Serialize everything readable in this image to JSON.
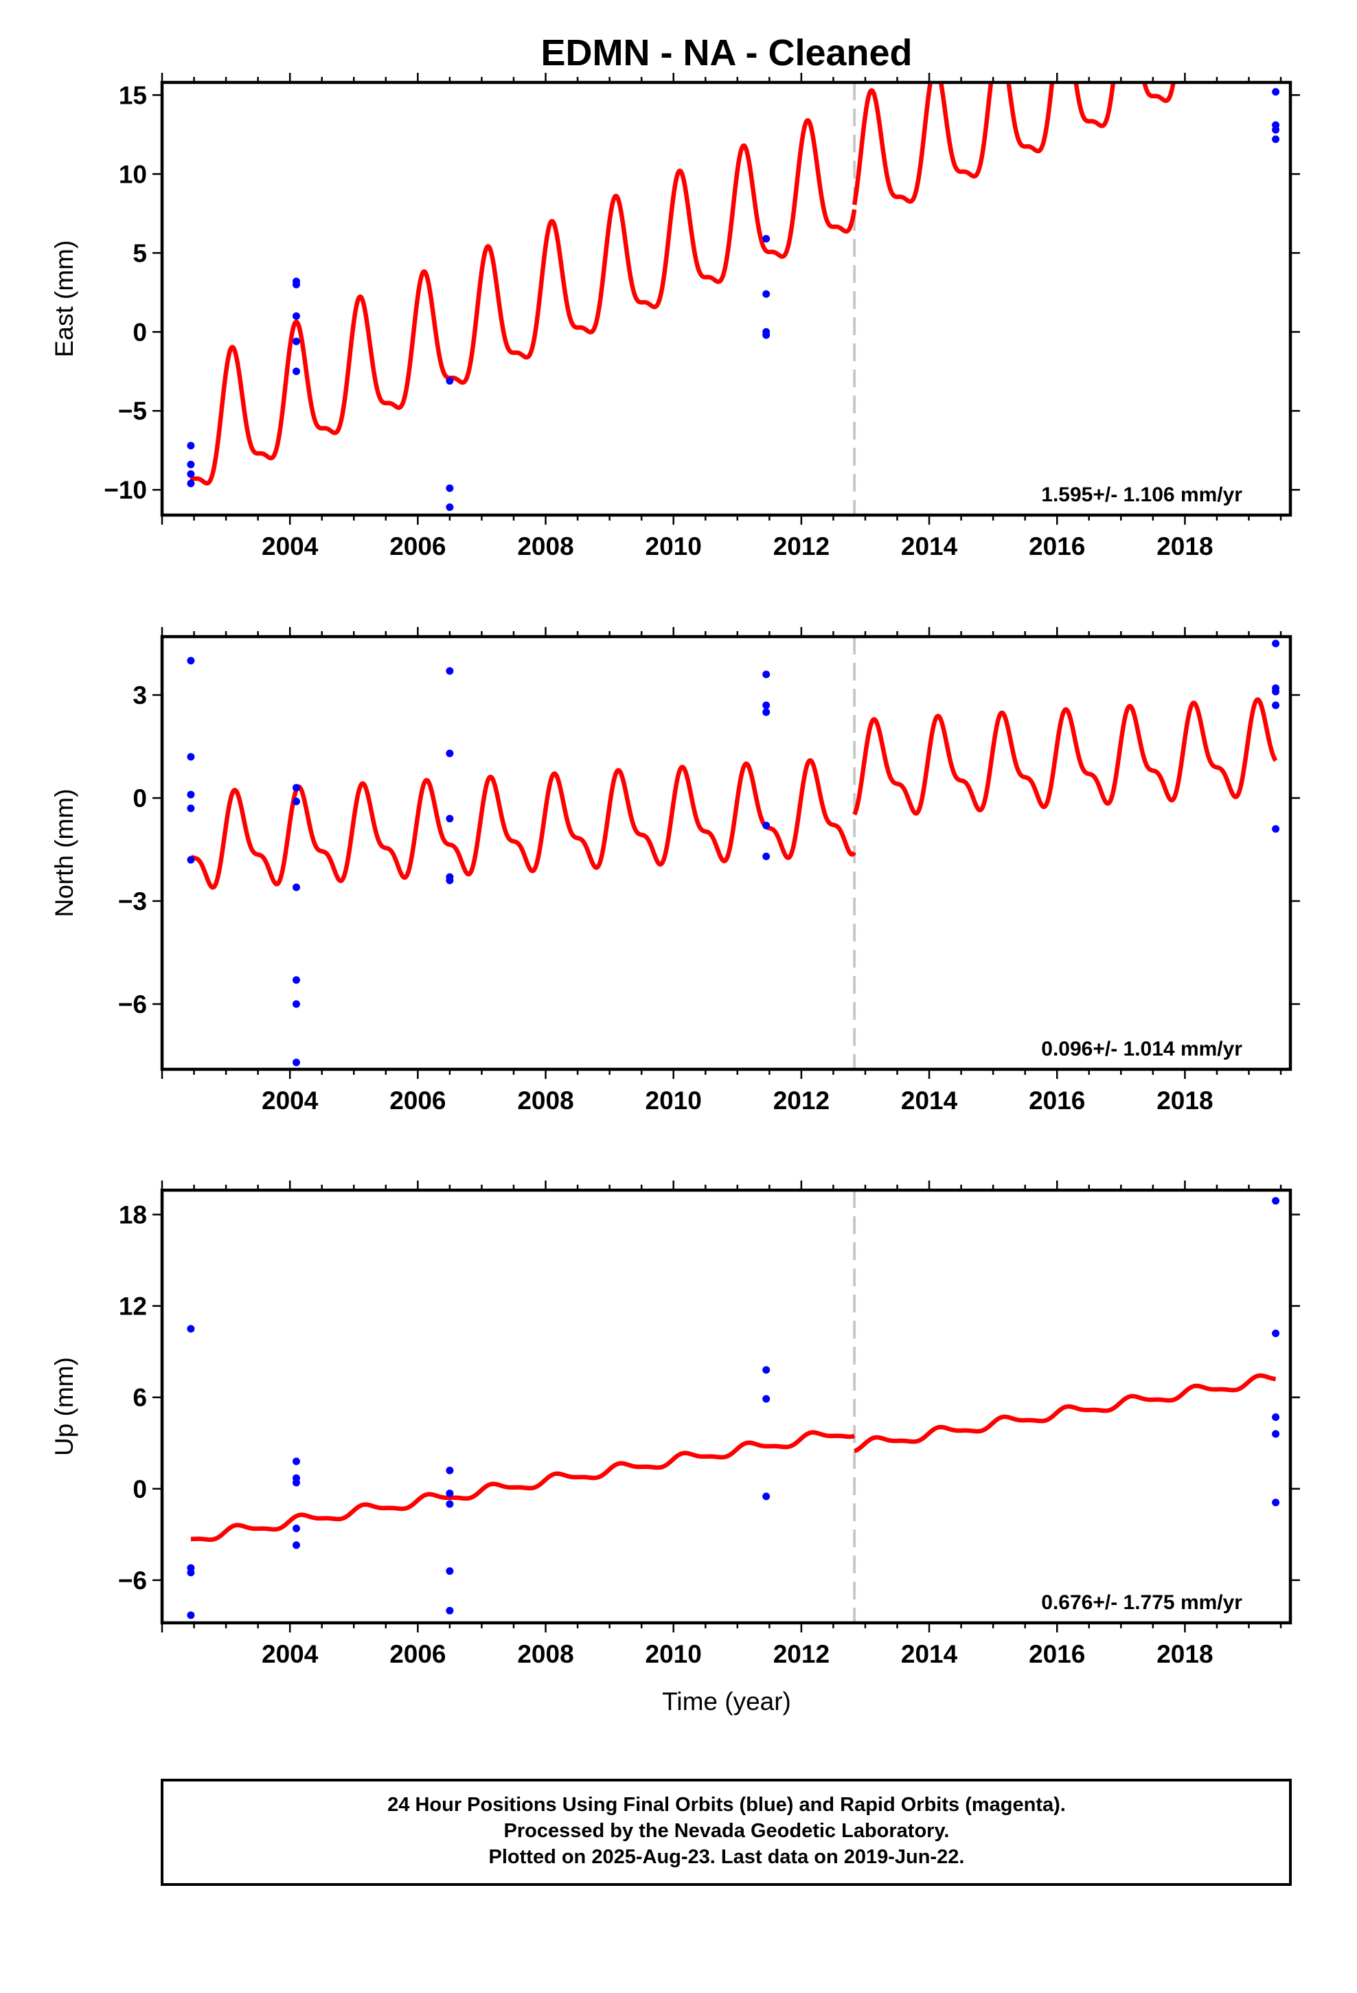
{
  "figure": {
    "title": "EDMN  - NA - Cleaned",
    "xlabel": "Time (year)",
    "footer": [
      "24 Hour Positions Using Final Orbits (blue) and Rapid Orbits (magenta).",
      "Processed by the Nevada Geodetic Laboratory.",
      "Plotted on 2025-Aug-23. Last data on 2019-Jun-22."
    ],
    "colors": {
      "data": "#0000ff",
      "model": "#ff0000",
      "step": "#c8c8c8"
    }
  },
  "chart_data": [
    {
      "type": "scatter",
      "name": "east",
      "ylabel": "East (mm)",
      "xlim": [
        2002.0,
        2019.65
      ],
      "ylim": [
        -11.6,
        15.8
      ],
      "yticks": [
        -10,
        -5,
        0,
        5,
        10,
        15
      ],
      "xticks": [
        2004,
        2006,
        2008,
        2010,
        2012,
        2014,
        2016,
        2018
      ],
      "rate_label": "1.595+/- 1.106 mm/yr",
      "step_epoch": 2012.83,
      "model": {
        "slope": 1.595,
        "intercept": -4.5,
        "ref_epoch": 2004,
        "annual_amp": 3.8,
        "annual_phase": 0.9,
        "semi_amp": 1.2,
        "semi_phase": 0.5,
        "offset_after_step": 0.3,
        "start": 2002.45,
        "end": 2019.42
      },
      "points": [
        [
          2002.45,
          -7.2
        ],
        [
          2002.45,
          -8.4
        ],
        [
          2002.45,
          -9.0
        ],
        [
          2002.45,
          -9.6
        ],
        [
          2004.1,
          3.2
        ],
        [
          2004.1,
          3.0
        ],
        [
          2004.1,
          1.0
        ],
        [
          2004.1,
          -0.6
        ],
        [
          2004.1,
          -2.5
        ],
        [
          2006.5,
          -3.1
        ],
        [
          2006.5,
          -9.9
        ],
        [
          2006.5,
          -11.1
        ],
        [
          2011.45,
          5.9
        ],
        [
          2011.45,
          2.4
        ],
        [
          2011.45,
          0.0
        ],
        [
          2011.45,
          -0.2
        ],
        [
          2019.42,
          15.2
        ],
        [
          2019.42,
          13.1
        ],
        [
          2019.42,
          12.8
        ],
        [
          2019.42,
          12.2
        ]
      ]
    },
    {
      "type": "scatter",
      "name": "north",
      "ylabel": "North (mm)",
      "xlim": [
        2002.0,
        2019.65
      ],
      "ylim": [
        -7.9,
        4.7
      ],
      "yticks": [
        -6,
        -3,
        0,
        3
      ],
      "xticks": [
        2004,
        2006,
        2008,
        2010,
        2012,
        2014,
        2016,
        2018
      ],
      "rate_label": "0.096+/- 1.014 mm/yr",
      "step_epoch": 2012.83,
      "model": {
        "slope": 0.096,
        "intercept": -1.25,
        "ref_epoch": 2004,
        "annual_amp": 1.15,
        "annual_phase": 0.4,
        "semi_amp": 0.5,
        "semi_phase": 0.2,
        "offset_after_step": 1.1,
        "start": 2002.45,
        "end": 2019.42
      },
      "points": [
        [
          2002.45,
          4.0
        ],
        [
          2002.45,
          1.2
        ],
        [
          2002.45,
          0.1
        ],
        [
          2002.45,
          -0.3
        ],
        [
          2002.45,
          -1.8
        ],
        [
          2004.1,
          0.3
        ],
        [
          2004.1,
          -0.1
        ],
        [
          2004.1,
          -2.6
        ],
        [
          2004.1,
          -5.3
        ],
        [
          2004.1,
          -6.0
        ],
        [
          2004.1,
          -7.7
        ],
        [
          2006.5,
          3.7
        ],
        [
          2006.5,
          1.3
        ],
        [
          2006.5,
          -0.6
        ],
        [
          2006.5,
          -2.3
        ],
        [
          2006.5,
          -2.4
        ],
        [
          2011.45,
          3.6
        ],
        [
          2011.45,
          2.7
        ],
        [
          2011.45,
          2.5
        ],
        [
          2011.45,
          -0.8
        ],
        [
          2011.45,
          -1.7
        ],
        [
          2019.42,
          4.5
        ],
        [
          2019.42,
          3.2
        ],
        [
          2019.42,
          3.1
        ],
        [
          2019.42,
          2.7
        ],
        [
          2019.42,
          -0.9
        ]
      ]
    },
    {
      "type": "scatter",
      "name": "up",
      "ylabel": "Up (mm)",
      "xlim": [
        2002.0,
        2019.65
      ],
      "ylim": [
        -8.8,
        19.6
      ],
      "yticks": [
        -6,
        0,
        6,
        12,
        18
      ],
      "xticks": [
        2004,
        2006,
        2008,
        2010,
        2012,
        2014,
        2016,
        2018
      ],
      "rate_label": "0.676+/- 1.775 mm/yr",
      "step_epoch": 2012.83,
      "model": {
        "slope": 0.676,
        "intercept": -2.2,
        "ref_epoch": 2004,
        "annual_amp": 0.3,
        "annual_phase": 0.3,
        "semi_amp": 0.1,
        "semi_phase": 0.1,
        "offset_after_step": -1.0,
        "start": 2002.45,
        "end": 2019.42
      },
      "points": [
        [
          2002.45,
          10.5
        ],
        [
          2002.45,
          -5.2
        ],
        [
          2002.45,
          -5.5
        ],
        [
          2002.45,
          -8.3
        ],
        [
          2004.1,
          1.8
        ],
        [
          2004.1,
          0.7
        ],
        [
          2004.1,
          0.4
        ],
        [
          2004.1,
          -2.6
        ],
        [
          2004.1,
          -3.7
        ],
        [
          2006.5,
          1.2
        ],
        [
          2006.5,
          -0.3
        ],
        [
          2006.5,
          -1.0
        ],
        [
          2006.5,
          -5.4
        ],
        [
          2006.5,
          -8.0
        ],
        [
          2011.45,
          7.8
        ],
        [
          2011.45,
          5.9
        ],
        [
          2011.45,
          -0.5
        ],
        [
          2019.42,
          18.9
        ],
        [
          2019.42,
          10.2
        ],
        [
          2019.42,
          4.7
        ],
        [
          2019.42,
          3.6
        ],
        [
          2019.42,
          -0.9
        ]
      ]
    }
  ]
}
